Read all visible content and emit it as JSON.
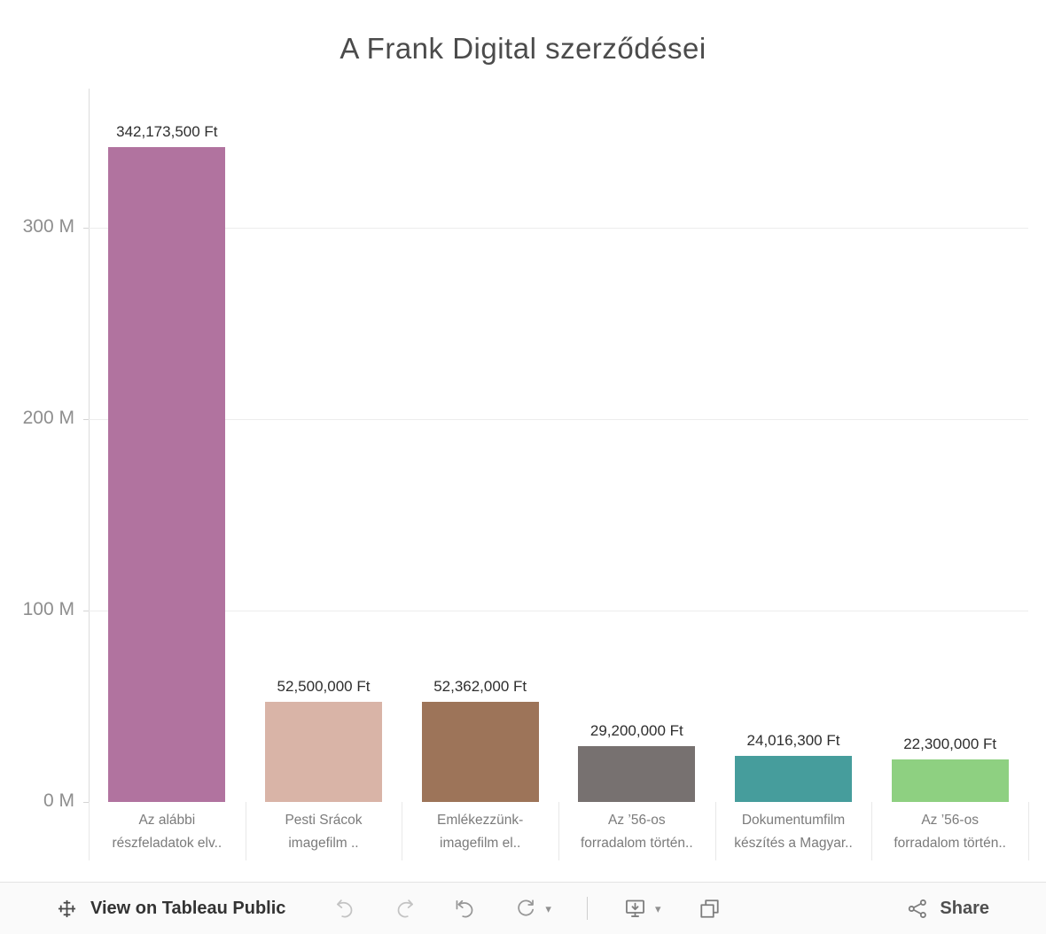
{
  "chart_data": {
    "type": "bar",
    "title": "A Frank Digital szerződései",
    "categories": [
      [
        "Az alábbi",
        "részfeladatok elv.."
      ],
      [
        "Pesti Srácok",
        "imagefilm .."
      ],
      [
        "Emlékezzünk-",
        "imagefilm el.."
      ],
      [
        "Az ’56-os",
        "forradalom történ.."
      ],
      [
        "Dokumentumfilm",
        "készítés a Magyar.."
      ],
      [
        "Az ’56-os",
        "forradalom történ.."
      ]
    ],
    "values": [
      342173500,
      52500000,
      52362000,
      29200000,
      24016300,
      22300000
    ],
    "value_labels": [
      "342,173,500 Ft",
      "52,500,000 Ft",
      "52,362,000 Ft",
      "29,200,000 Ft",
      "24,016,300 Ft",
      "22,300,000 Ft"
    ],
    "bar_colors": [
      "#b1739f",
      "#d9b4a7",
      "#9d7459",
      "#777170",
      "#469d9c",
      "#8ed081"
    ],
    "y_ticks": [
      "0 M",
      "100 M",
      "200 M",
      "300 M"
    ],
    "y_tick_values": [
      0,
      100000000,
      200000000,
      300000000
    ],
    "ylim": [
      0,
      372000000
    ],
    "xlabel": "",
    "ylabel": "",
    "grid": true,
    "legend": false
  },
  "toolbar": {
    "view_label": "View on Tableau Public",
    "share_label": "Share",
    "icons": [
      "tableau-logo",
      "undo",
      "redo",
      "reset",
      "refresh",
      "caret-down",
      "download",
      "caret-down",
      "fullscreen",
      "share"
    ]
  }
}
